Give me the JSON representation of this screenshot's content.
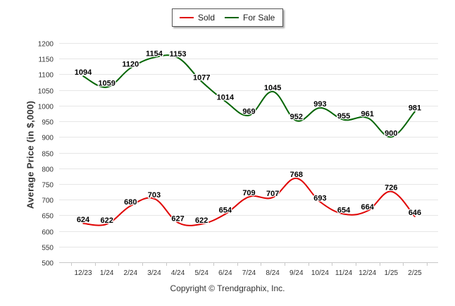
{
  "chart_data": {
    "type": "line",
    "categories": [
      "12/23",
      "1/24",
      "2/24",
      "3/24",
      "4/24",
      "5/24",
      "6/24",
      "7/24",
      "8/24",
      "9/24",
      "10/24",
      "11/24",
      "12/24",
      "1/25",
      "2/25"
    ],
    "series": [
      {
        "name": "Sold",
        "color": "#e00000",
        "values": [
          624,
          622,
          680,
          703,
          627,
          622,
          654,
          709,
          707,
          768,
          693,
          654,
          664,
          726,
          646
        ]
      },
      {
        "name": "For Sale",
        "color": "#006400",
        "values": [
          1094,
          1059,
          1120,
          1154,
          1153,
          1077,
          1014,
          969,
          1045,
          952,
          993,
          955,
          961,
          900,
          981
        ]
      }
    ],
    "ylabel": "Average Price (in $,000)",
    "ylim": [
      500,
      1200
    ],
    "yticks": [
      500,
      550,
      600,
      650,
      700,
      750,
      800,
      850,
      900,
      950,
      1000,
      1050,
      1100,
      1150,
      1200
    ],
    "grid": true,
    "legend": "top-center"
  },
  "footer": {
    "copyright": "Copyright © Trendgraphix, Inc."
  }
}
